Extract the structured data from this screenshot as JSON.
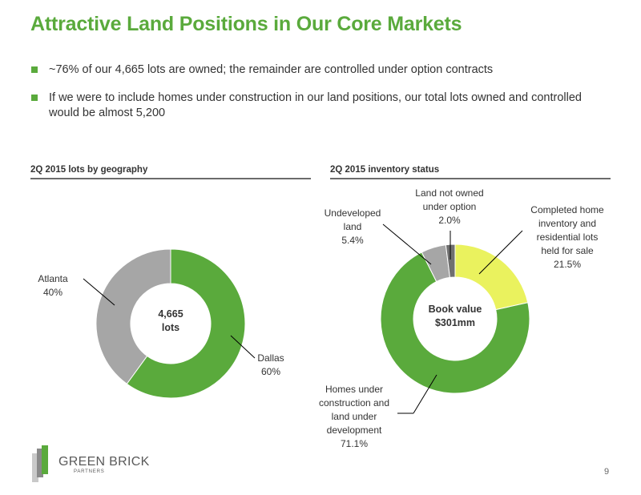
{
  "title": "Attractive Land Positions in Our Core Markets",
  "bullets": [
    "~76% of our 4,665 lots are owned; the remainder are controlled under option contracts",
    "If we were to include homes under construction in our land positions, our total lots owned and controlled would be almost 5,200"
  ],
  "colors": {
    "green": "#5aaa3c",
    "gray": "#a6a6a6",
    "yellow": "#eaf25e",
    "dark_gray": "#6f6f6f"
  },
  "chart_data": [
    {
      "type": "pie",
      "title": "2Q 2015 lots by geography",
      "center_label": [
        "4,665",
        "lots"
      ],
      "slices": [
        {
          "name": "Dallas",
          "value": 60,
          "label": "60%",
          "color": "#5aaa3c"
        },
        {
          "name": "Atlanta",
          "value": 40,
          "label": "40%",
          "color": "#a6a6a6"
        }
      ]
    },
    {
      "type": "pie",
      "title": "2Q 2015 inventory status",
      "center_label": [
        "Book value",
        "$301mm"
      ],
      "slices": [
        {
          "name": [
            "Completed home",
            "inventory and",
            "residential lots",
            "held for sale"
          ],
          "value": 21.5,
          "label": "21.5%",
          "color": "#eaf25e"
        },
        {
          "name": [
            "Homes under",
            "construction and",
            "land under",
            "development"
          ],
          "value": 71.1,
          "label": "71.1%",
          "color": "#5aaa3c"
        },
        {
          "name": [
            "Undeveloped",
            "land"
          ],
          "value": 5.4,
          "label": "5.4%",
          "color": "#a6a6a6"
        },
        {
          "name": [
            "Land not owned",
            "under option"
          ],
          "value": 2.0,
          "label": "2.0%",
          "color": "#6f6f6f"
        }
      ]
    }
  ],
  "logo": {
    "name": "GREEN BRICK",
    "sub": "PARTNERS"
  },
  "page_number": "9"
}
